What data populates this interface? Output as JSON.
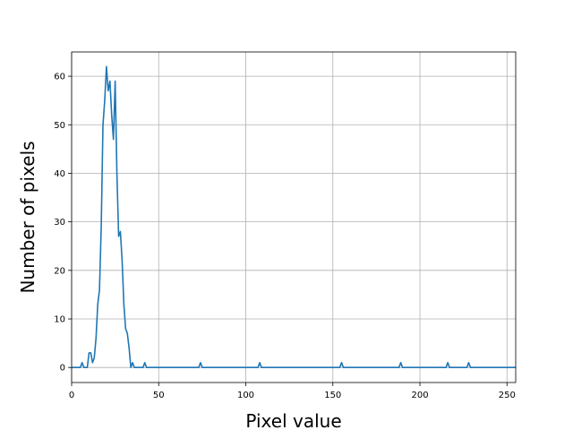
{
  "chart_data": {
    "type": "line",
    "title": "",
    "xlabel": "Pixel value",
    "ylabel": "Number of pixels",
    "xlim": [
      0,
      255
    ],
    "ylim": [
      -3.1,
      65
    ],
    "grid": true,
    "xticks": [
      0,
      50,
      100,
      150,
      200,
      250
    ],
    "yticks": [
      0,
      10,
      20,
      30,
      40,
      50,
      60
    ],
    "xtick_labels": [
      "0",
      "50",
      "100",
      "150",
      "200",
      "250"
    ],
    "ytick_labels": [
      "0",
      "10",
      "20",
      "30",
      "40",
      "50",
      "60"
    ],
    "colors": {
      "line": "#1f77b4",
      "grid": "#b0b0b0",
      "axes": "#000000"
    },
    "series": [
      {
        "x": [
          0,
          1,
          2,
          3,
          4,
          5,
          6,
          7,
          8,
          9,
          10,
          11,
          12,
          13,
          14,
          15,
          16,
          17,
          18,
          19,
          20,
          21,
          22,
          23,
          24,
          25,
          26,
          27,
          28,
          29,
          30,
          31,
          32,
          33,
          34,
          35,
          36,
          37,
          38,
          39,
          40,
          41,
          42,
          43,
          44,
          45,
          72,
          73,
          74,
          75,
          106,
          107,
          108,
          109,
          153,
          154,
          155,
          156,
          187,
          188,
          189,
          190,
          214,
          215,
          216,
          217,
          226,
          227,
          228,
          229,
          255
        ],
        "y": [
          0,
          0,
          0,
          0,
          0,
          0,
          1,
          0,
          0,
          0,
          3,
          3,
          1,
          2,
          6,
          13,
          16,
          29,
          50,
          55,
          62,
          57,
          59,
          52,
          47,
          59,
          40,
          27,
          28,
          22,
          13,
          8,
          7,
          4,
          0,
          1,
          0,
          0,
          0,
          0,
          0,
          0,
          1,
          0,
          0,
          0,
          0,
          0,
          1,
          0,
          0,
          0,
          1,
          0,
          0,
          0,
          1,
          0,
          0,
          0,
          1,
          0,
          0,
          0,
          1,
          0,
          0,
          0,
          1,
          0,
          0
        ]
      }
    ]
  }
}
